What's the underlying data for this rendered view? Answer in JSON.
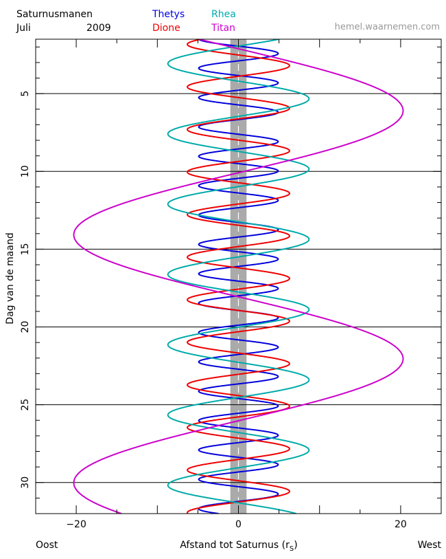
{
  "header": {
    "title": "Saturnusmanen",
    "month": "Juli",
    "year": "2009",
    "credit": "hemel.waarnemen.com"
  },
  "footer": {
    "left": "Oost",
    "right": "West"
  },
  "chart_data": {
    "type": "line",
    "xlabel_main": "Afstand tot Saturnus (r",
    "xlabel_sub": "S",
    "xlabel_close": ")",
    "ylabel": "Dag van de maand",
    "xlim": [
      -25,
      25
    ],
    "ylim": [
      1.5,
      32
    ],
    "y_inverted": true,
    "x_ticks": [
      -20,
      0,
      20
    ],
    "y_ticks": [
      5,
      10,
      15,
      20,
      25,
      30
    ],
    "horizontal_gridlines": [
      5,
      10,
      15,
      20,
      25,
      30
    ],
    "planet_band_halfwidth": 1,
    "series": [
      {
        "name": "Thetys",
        "color": "#0000dd",
        "amplitude": 4.9,
        "period_days": 1.888,
        "phase_day": 2.42,
        "label_col": 0,
        "label_row": 0
      },
      {
        "name": "Dione",
        "color": "#ee0000",
        "amplitude": 6.3,
        "period_days": 2.737,
        "phase_day": 3.2,
        "label_col": 0,
        "label_row": 1
      },
      {
        "name": "Rhea",
        "color": "#00aaaa",
        "amplitude": 8.7,
        "period_days": 4.518,
        "phase_day": 5.33,
        "label_col": 1,
        "label_row": 0
      },
      {
        "name": "Titan",
        "color": "#cc00cc",
        "amplitude": 20.3,
        "period_days": 15.945,
        "phase_day": 6.1,
        "label_col": 1,
        "label_row": 1
      }
    ]
  }
}
